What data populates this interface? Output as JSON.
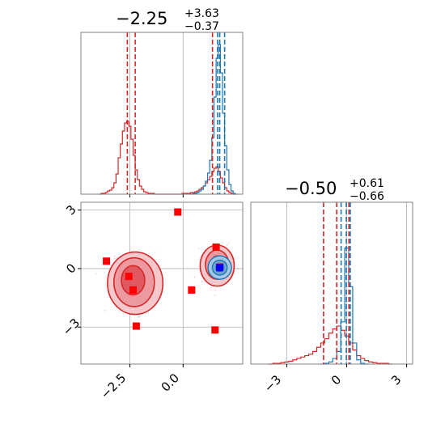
{
  "colors": {
    "red": "#d62728",
    "blue": "#1f77b4",
    "marker_red": "#ff0000",
    "marker_blue": "#0000ff",
    "grid": "#b0b0b0",
    "axes": "#808080"
  },
  "chart_data": {
    "type": "corner",
    "parameters": [
      "p1",
      "p2"
    ],
    "grid": true,
    "titles": [
      {
        "value": "−2.25",
        "plus": "+3.63",
        "minus": "−0.37"
      },
      {
        "value": "−0.50",
        "plus": "+0.61",
        "minus": "−0.66"
      }
    ],
    "p1_hist": {
      "xlim": [
        -4.8,
        2.8
      ],
      "ticks": [
        -2.5,
        0.0
      ],
      "tick_labels": [
        "−2.5",
        "0.0"
      ],
      "red_quantiles": [
        -2.62,
        -2.25,
        1.38
      ],
      "blue_quantiles": [
        1.62,
        1.72,
        1.95
      ],
      "red_bins_x": [
        -3.9,
        -3.8,
        -3.7,
        -3.6,
        -3.5,
        -3.4,
        -3.3,
        -3.2,
        -3.1,
        -3.0,
        -2.9,
        -2.8,
        -2.7,
        -2.6,
        -2.5,
        -2.4,
        -2.3,
        -2.2,
        -2.1,
        -2.0,
        -1.9,
        -1.8,
        -1.7,
        -1.6,
        -1.5,
        -1.4,
        -1.3,
        -1.2,
        -1.1,
        -1.0,
        -0.9,
        -0.8,
        -0.7,
        -0.6,
        -0.5,
        -0.4,
        -0.3,
        -0.2,
        -0.1,
        0.0,
        0.1,
        0.2,
        0.3,
        0.4,
        0.5,
        0.6,
        0.7,
        0.8,
        0.9,
        1.0,
        1.1,
        1.2,
        1.3,
        1.4,
        1.5,
        1.6,
        1.7,
        1.8,
        1.9,
        2.0,
        2.1,
        2.2,
        2.3,
        2.4,
        2.5
      ],
      "red_bins_y": [
        0,
        1,
        1,
        2,
        4,
        5,
        8,
        14,
        25,
        45,
        62,
        78,
        88,
        90,
        84,
        68,
        48,
        30,
        18,
        10,
        6,
        3,
        2,
        1,
        1,
        1,
        0,
        0,
        0,
        0,
        0,
        0,
        0,
        0,
        0,
        0,
        0,
        0,
        0,
        1,
        1,
        1,
        1,
        2,
        2,
        3,
        4,
        6,
        8,
        10,
        14,
        18,
        22,
        28,
        32,
        34,
        28,
        20,
        14,
        8,
        4,
        2,
        1,
        0,
        0
      ],
      "blue_bins_x": [
        0.4,
        0.5,
        0.6,
        0.7,
        0.8,
        0.9,
        1.0,
        1.1,
        1.2,
        1.3,
        1.4,
        1.5,
        1.6,
        1.7,
        1.8,
        1.9,
        2.0,
        2.1,
        2.2,
        2.3,
        2.4
      ],
      "blue_bins_y": [
        0,
        1,
        1,
        2,
        4,
        6,
        10,
        16,
        26,
        42,
        70,
        120,
        168,
        185,
        150,
        100,
        60,
        30,
        12,
        4,
        1
      ]
    },
    "p2_hist": {
      "xlim": [
        -4.8,
        3.3
      ],
      "ticks": [
        -3,
        0,
        3
      ],
      "tick_labels": [
        "−3",
        "0",
        "3"
      ],
      "red_quantiles": [
        -1.16,
        -0.5,
        0.11
      ],
      "blue_quantiles": [
        -0.28,
        -0.02,
        0.18
      ],
      "red_bins_x": [
        -3.8,
        -3.6,
        -3.4,
        -3.2,
        -3.0,
        -2.8,
        -2.6,
        -2.4,
        -2.2,
        -2.0,
        -1.8,
        -1.6,
        -1.4,
        -1.2,
        -1.0,
        -0.8,
        -0.6,
        -0.4,
        -0.2,
        0.0,
        0.2,
        0.4,
        0.6,
        0.8,
        1.0,
        1.2,
        1.4,
        1.6,
        1.8,
        2.0,
        2.2
      ],
      "red_bins_y": [
        0,
        1,
        1,
        2,
        3,
        4,
        6,
        8,
        10,
        12,
        14,
        18,
        24,
        30,
        36,
        44,
        50,
        54,
        48,
        40,
        30,
        20,
        12,
        8,
        5,
        3,
        2,
        1,
        1,
        1,
        0
      ],
      "blue_bins_x": [
        -1.2,
        -1.0,
        -0.8,
        -0.6,
        -0.4,
        -0.2,
        0.0,
        0.2,
        0.4,
        0.6,
        0.8,
        1.0
      ],
      "blue_bins_y": [
        0,
        1,
        3,
        8,
        18,
        60,
        165,
        110,
        30,
        6,
        1,
        0
      ]
    },
    "scatter": {
      "xlim": [
        -4.8,
        2.8
      ],
      "ylim": [
        -4.9,
        3.4
      ],
      "xticks": [
        -2.5,
        0.0
      ],
      "xtick_labels": [
        "−2.5",
        "0.0"
      ],
      "yticks": [
        -3,
        0,
        3
      ],
      "ytick_labels": [
        "−3",
        "0",
        "3"
      ],
      "red_markers": [
        {
          "x": -0.25,
          "y": 2.9
        },
        {
          "x": -3.6,
          "y": 0.38
        },
        {
          "x": -2.55,
          "y": -0.4
        },
        {
          "x": -2.35,
          "y": -1.1
        },
        {
          "x": -2.2,
          "y": -2.95
        },
        {
          "x": 0.4,
          "y": -1.1
        },
        {
          "x": 1.55,
          "y": 1.1
        },
        {
          "x": 1.5,
          "y": -3.15
        },
        {
          "x": 1.72,
          "y": 0.08
        }
      ],
      "blue_markers": [
        {
          "x": 1.72,
          "y": 0.05
        }
      ],
      "red_contours": [
        {
          "cx": -2.25,
          "cy": -0.75,
          "rx": 1.3,
          "ry": 1.6
        },
        {
          "cx": -2.3,
          "cy": -0.7,
          "rx": 0.95,
          "ry": 1.25
        },
        {
          "cx": -2.35,
          "cy": -0.6,
          "rx": 0.55,
          "ry": 0.75
        },
        {
          "cx": 1.6,
          "cy": 0.15,
          "rx": 0.8,
          "ry": 1.05
        },
        {
          "cx": 1.6,
          "cy": 0.2,
          "rx": 0.55,
          "ry": 0.75
        },
        {
          "cx": 1.6,
          "cy": 0.2,
          "rx": 0.3,
          "ry": 0.45
        }
      ],
      "blue_contours": [
        {
          "cx": 1.72,
          "cy": 0.05,
          "rx": 0.55,
          "ry": 0.6
        },
        {
          "cx": 1.72,
          "cy": 0.05,
          "rx": 0.35,
          "ry": 0.38
        },
        {
          "cx": 1.72,
          "cy": 0.05,
          "rx": 0.18,
          "ry": 0.2
        }
      ]
    }
  }
}
